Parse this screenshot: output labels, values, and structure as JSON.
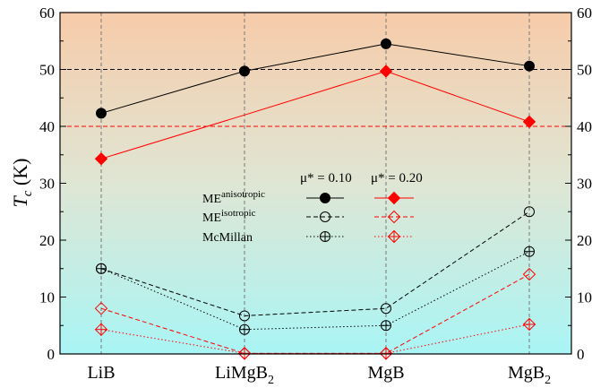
{
  "chart_data": {
    "type": "line",
    "categories": [
      "LiB",
      "LiMgB2",
      "MgB",
      "MgB2"
    ],
    "ylabel": "T_c (K)",
    "ylim": [
      0,
      60
    ],
    "yticks": [
      0,
      10,
      20,
      30,
      40,
      50,
      60
    ],
    "grid": "vertical dashed at categories; horizontal dashed reference lines at 40 (red) and 50 (black)",
    "background": "vertical gradient from orange/peach (top) to cyan (bottom)",
    "legend_placement": "center",
    "legend_column_headers": [
      "μ* = 0.10",
      "μ* = 0.20"
    ],
    "legend_rows": [
      "ME^anisotropic",
      "ME^isotropic",
      "McMillan"
    ],
    "colors": {
      "mu010": "#000000",
      "mu020": "#ff0000"
    },
    "reference_lines": [
      {
        "y": 50,
        "color": "#000000"
      },
      {
        "y": 40,
        "color": "#ff0000"
      }
    ],
    "series": [
      {
        "name": "ME^anisotropic, μ* = 0.10",
        "mu": "0.10",
        "method": "ME^anisotropic",
        "marker": "filled-circle",
        "line": "solid",
        "values": [
          42.3,
          49.7,
          54.5,
          50.6
        ]
      },
      {
        "name": "ME^anisotropic, μ* = 0.20",
        "mu": "0.20",
        "method": "ME^anisotropic",
        "marker": "filled-diamond",
        "line": "solid",
        "values": [
          34.3,
          42.0,
          49.7,
          40.8
        ],
        "note_values_drawn_only_at": [
          0,
          2,
          3
        ]
      },
      {
        "name": "ME^isotropic, μ* = 0.10",
        "mu": "0.10",
        "method": "ME^isotropic",
        "marker": "open-circle",
        "line": "dashed",
        "values": [
          15.0,
          6.7,
          8.0,
          25.0
        ]
      },
      {
        "name": "ME^isotropic, μ* = 0.20",
        "mu": "0.20",
        "method": "ME^isotropic",
        "marker": "open-diamond",
        "line": "dashed",
        "values": [
          8.0,
          0.1,
          0.1,
          14.0
        ]
      },
      {
        "name": "McMillan, μ* = 0.10",
        "mu": "0.10",
        "method": "McMillan",
        "marker": "crossed-circle",
        "line": "dotted",
        "values": [
          15.0,
          4.3,
          5.0,
          18.0
        ]
      },
      {
        "name": "McMillan, μ* = 0.20",
        "mu": "0.20",
        "method": "McMillan",
        "marker": "crossed-diamond",
        "line": "dotted",
        "values": [
          4.3,
          0.1,
          0.1,
          5.2
        ]
      }
    ]
  }
}
